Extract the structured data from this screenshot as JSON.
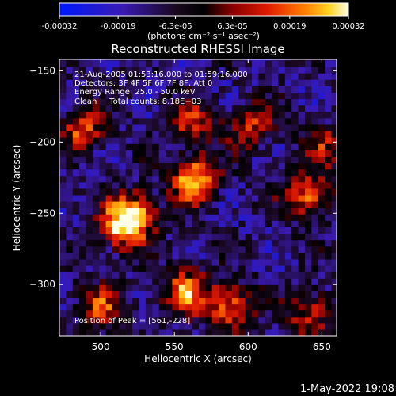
{
  "chart_data": {
    "type": "heatmap",
    "title": "Reconstructed RHESSI Image",
    "xlabel": "Heliocentric X (arcsec)",
    "ylabel": "Heliocentric Y (arcsec)",
    "xlim": [
      472,
      660
    ],
    "ylim": [
      -336,
      -142
    ],
    "xticks": [
      500,
      550,
      600,
      650
    ],
    "yticks": [
      -150,
      -200,
      -250,
      -300
    ],
    "colorbar": {
      "min": -0.00032,
      "max": 0.00032,
      "tick_values": [
        -0.00032,
        -0.00019,
        -6.3e-05,
        6.3e-05,
        0.00019,
        0.00032
      ],
      "tick_labels": [
        "-0.00032",
        "-0.00019",
        "-6.3e-05",
        "6.3e-05",
        "0.00019",
        "0.00032"
      ],
      "units": "(photons cm⁻² s⁻¹ asec⁻²)"
    },
    "annotations": [
      "21-Aug-2005 01:53:16.000 to 01:59:16.000",
      "Detectors: 3F 4F 5F 6F 7F 8F, Att 0",
      "Energy Range: 25.0 - 50.0 keV",
      "Clean     Total counts: 8.18E+03"
    ],
    "peak_label": "Position of Peak = [561,-228]",
    "peak": {
      "x": 561,
      "y": -228,
      "value": 0.00032
    },
    "bright_regions": [
      {
        "x": 561,
        "y": -228,
        "value": 0.00032
      },
      {
        "x": 520,
        "y": -252,
        "value": 0.00028
      },
      {
        "x": 512,
        "y": -262,
        "value": 0.00024
      },
      {
        "x": 485,
        "y": -192,
        "value": 0.00022
      },
      {
        "x": 498,
        "y": -318,
        "value": 0.00019
      },
      {
        "x": 555,
        "y": -306,
        "value": 0.00026
      },
      {
        "x": 585,
        "y": -318,
        "value": 0.00027
      },
      {
        "x": 638,
        "y": -240,
        "value": 0.00026
      },
      {
        "x": 600,
        "y": -190,
        "value": 0.0002
      },
      {
        "x": 560,
        "y": -190,
        "value": 0.00018
      },
      {
        "x": 640,
        "y": -322,
        "value": 0.0002
      },
      {
        "x": 650,
        "y": -205,
        "value": 0.00015
      }
    ]
  },
  "footer": {
    "date": "1-May-2022 19:08"
  }
}
